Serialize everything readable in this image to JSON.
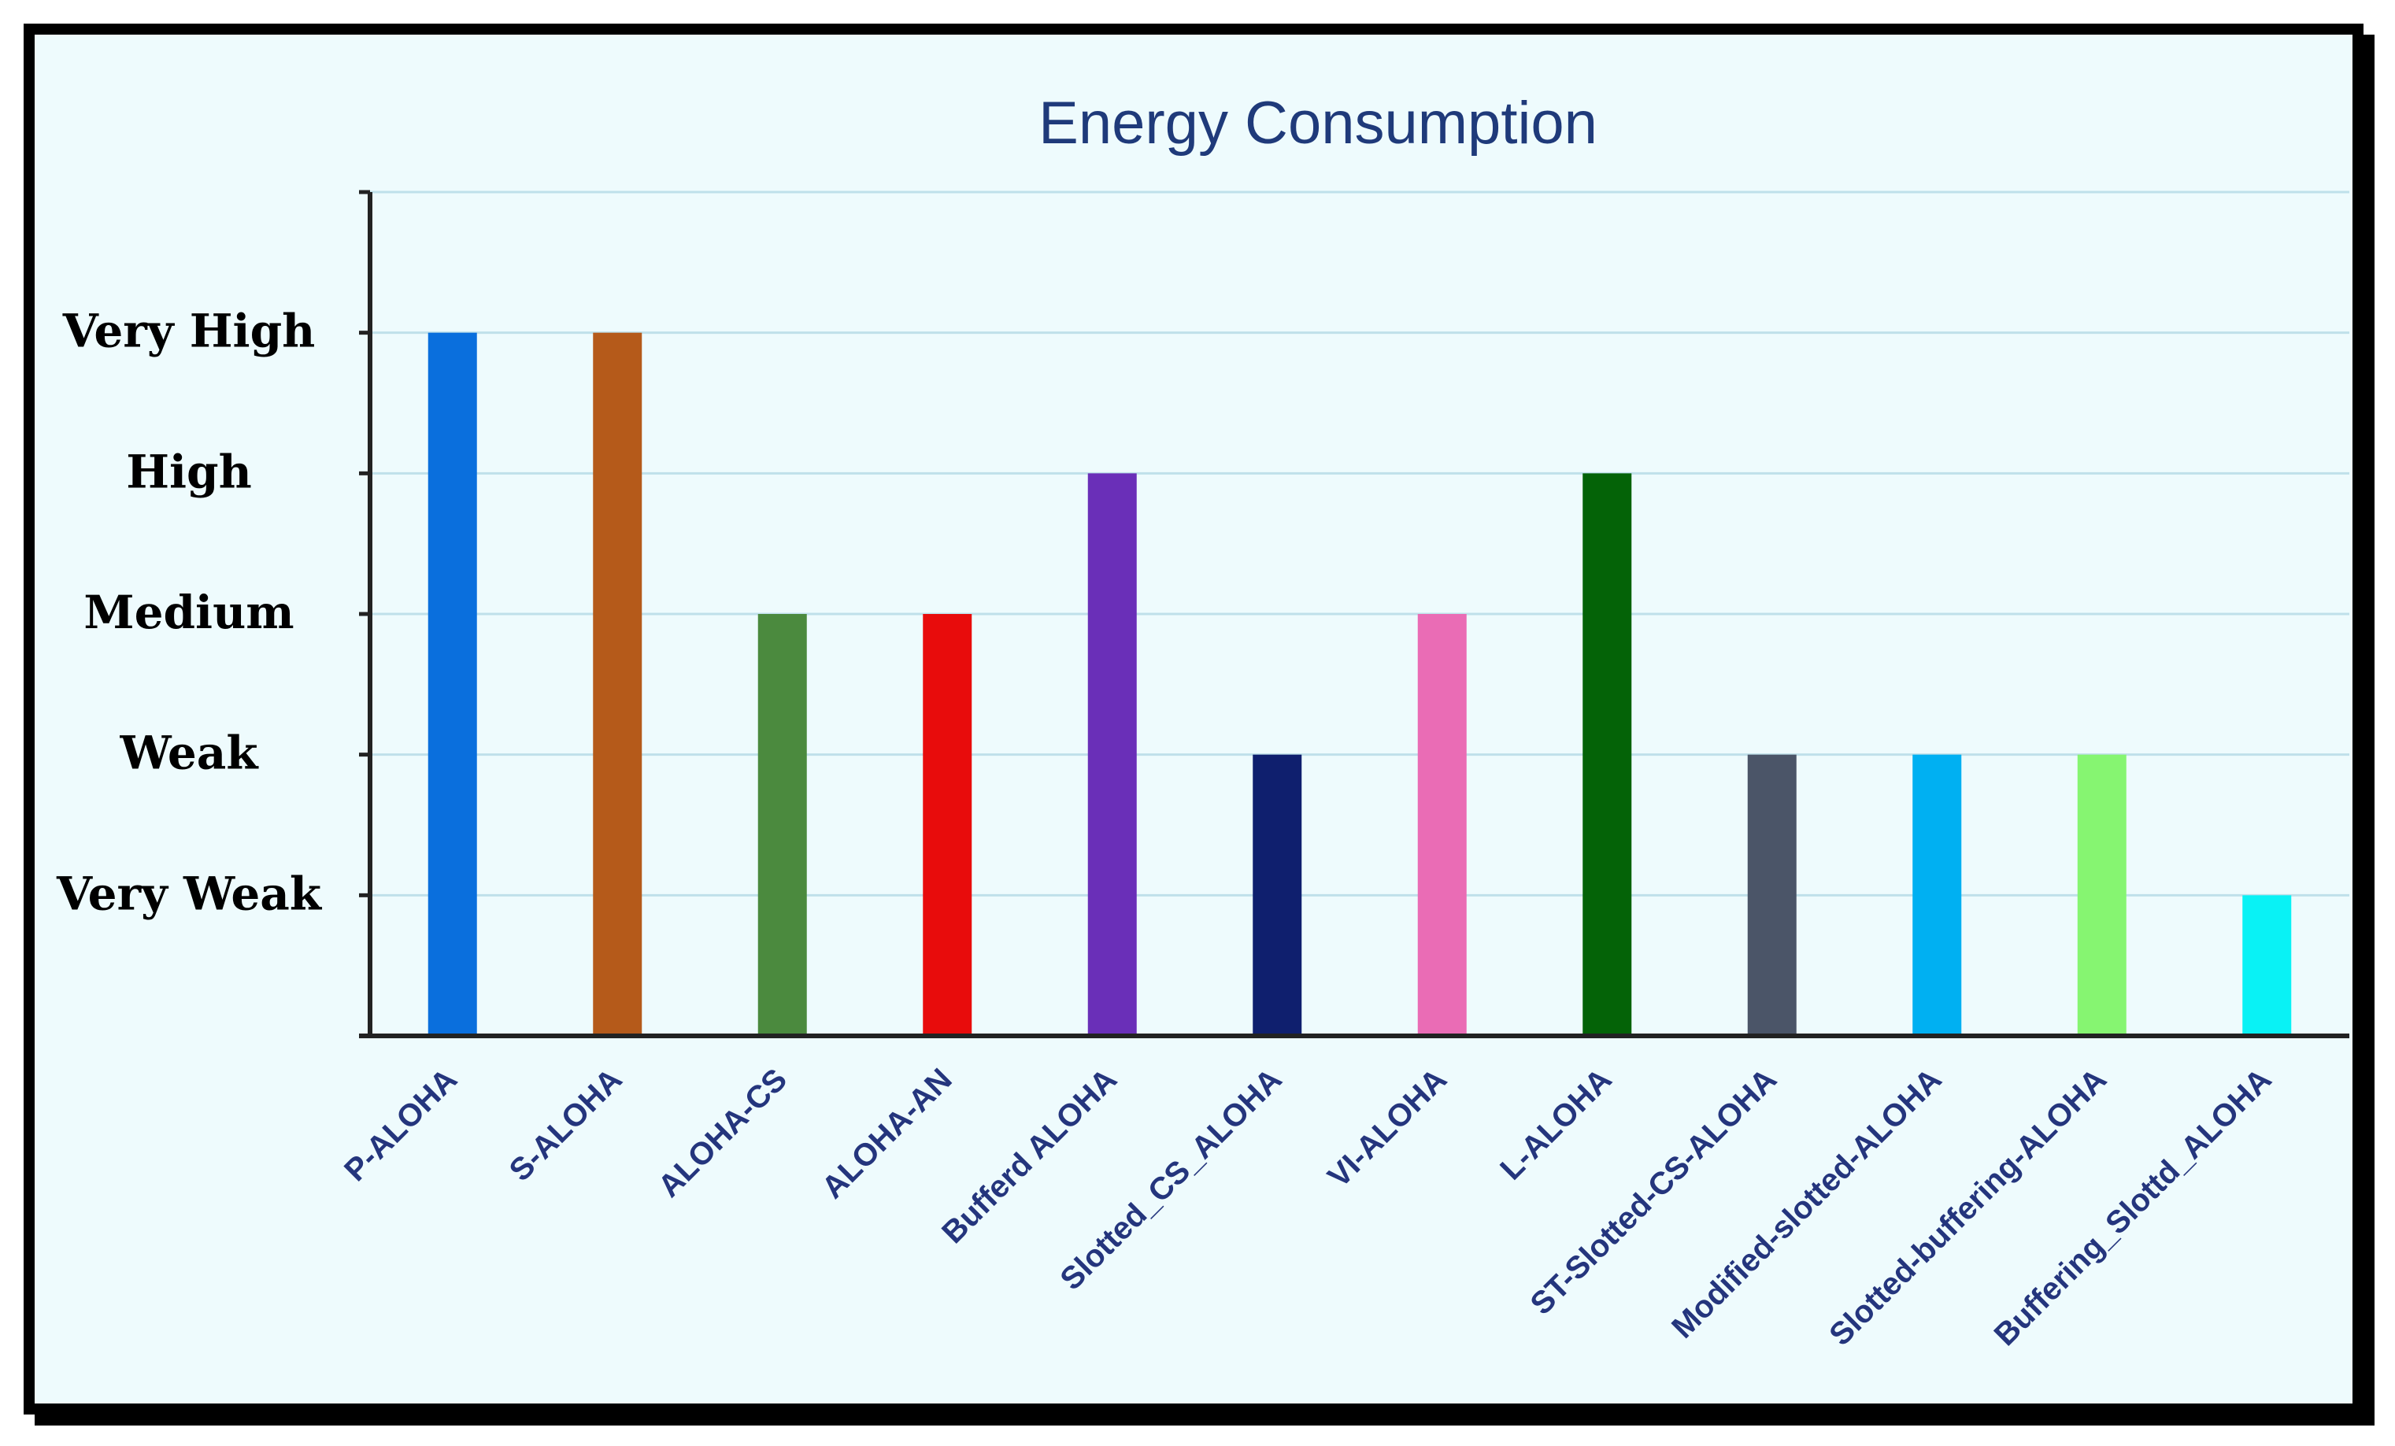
{
  "chart_data": {
    "type": "bar",
    "title": "Energy Consumption",
    "xlabel": "",
    "ylabel": "",
    "ylim": [
      0,
      6
    ],
    "grid": true,
    "yticks": [
      {
        "value": 1,
        "label": "Very Weak"
      },
      {
        "value": 2,
        "label": "Weak"
      },
      {
        "value": 3,
        "label": "Medium"
      },
      {
        "value": 4,
        "label": "High"
      },
      {
        "value": 5,
        "label": "Very High"
      }
    ],
    "categories": [
      "P-ALOHA",
      "S-ALOHA",
      "ALOHA-CS",
      "ALOHA-AN",
      "Bufferd ALOHA",
      "Slotted_CS_ALOHA",
      "VI-ALOHA",
      "L-ALOHA",
      "ST-Slotted-CS-ALOHA",
      "Modified-slotted-ALOHA",
      "Slotted-buffering-ALOHA",
      "Buffering_Slottd_ALOHA"
    ],
    "values": [
      5,
      5,
      3,
      3,
      4,
      2,
      3,
      4,
      2,
      2,
      2,
      1
    ],
    "colors": [
      "#0a6fdd",
      "#b55a1a",
      "#4b8a3e",
      "#e80c0c",
      "#6a2fb8",
      "#0f1f6e",
      "#ea6cb5",
      "#046307",
      "#4b5568",
      "#00b0f2",
      "#86f571",
      "#09f2f5"
    ]
  }
}
